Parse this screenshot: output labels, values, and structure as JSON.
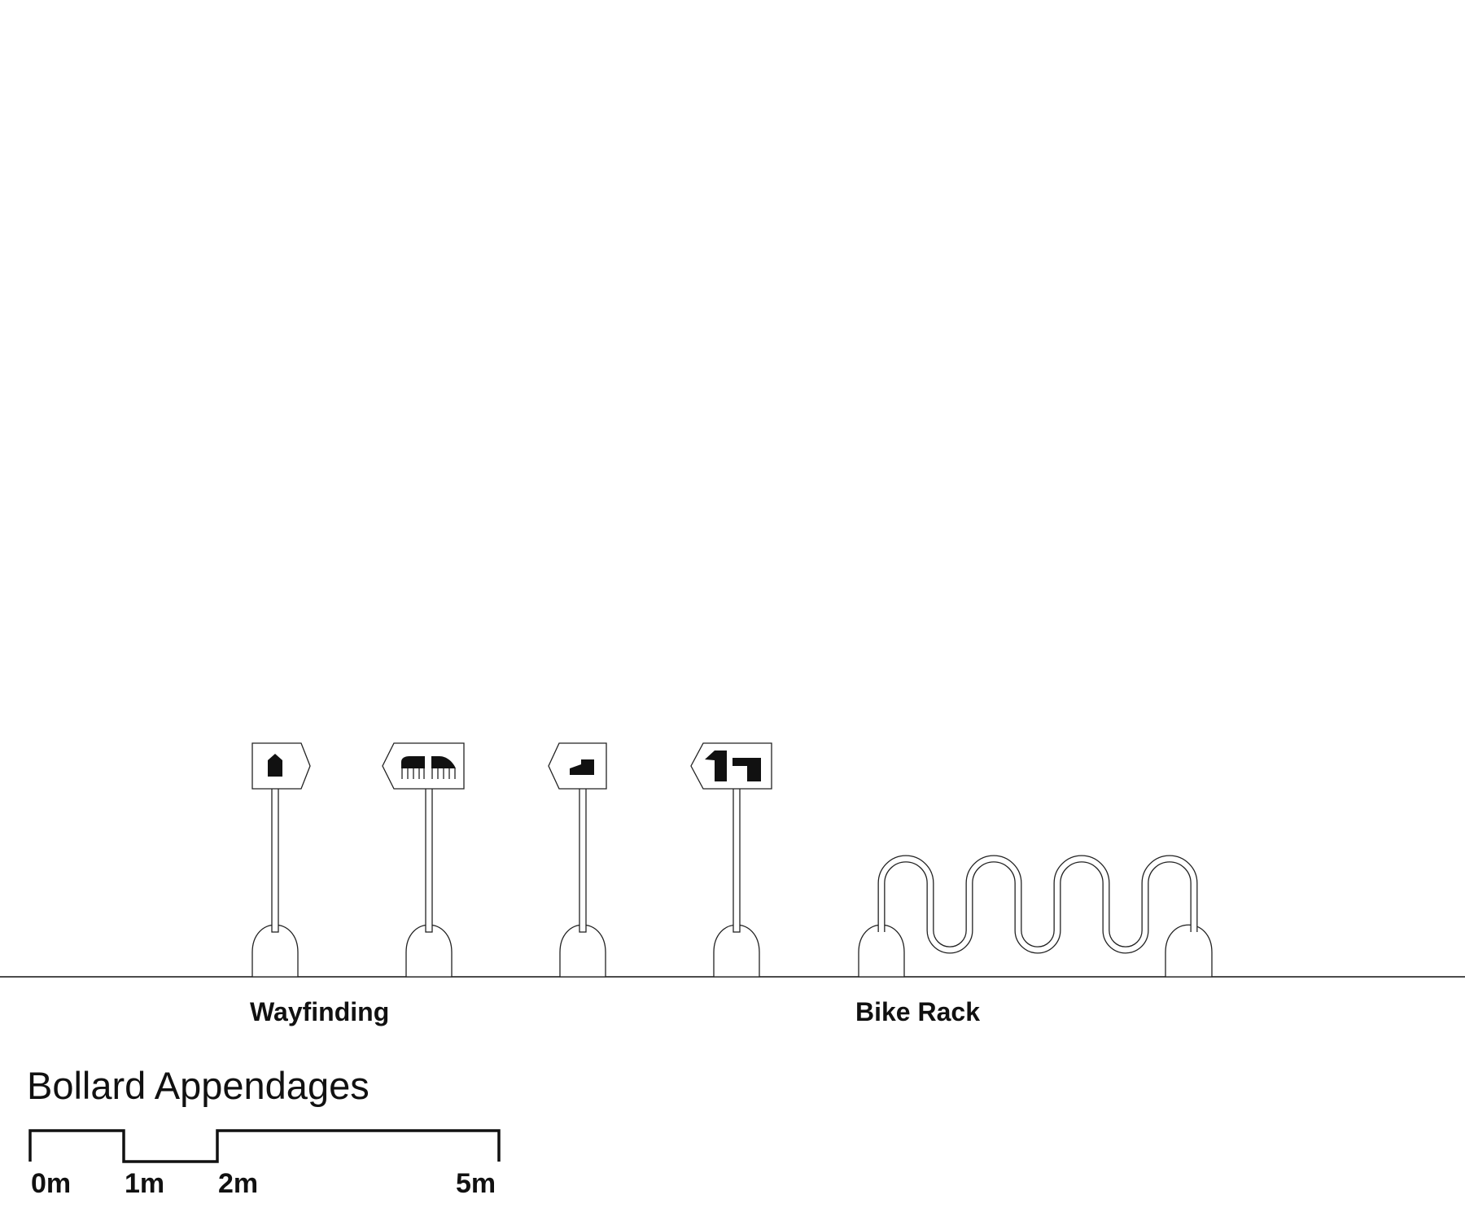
{
  "diagram": {
    "labels": {
      "wayfinding": "Wayfinding",
      "bike_rack": "Bike Rack"
    },
    "title": "Bollard Appendages",
    "scale_bar": {
      "ticks": [
        "0m",
        "1m",
        "2m",
        "5m"
      ]
    }
  }
}
